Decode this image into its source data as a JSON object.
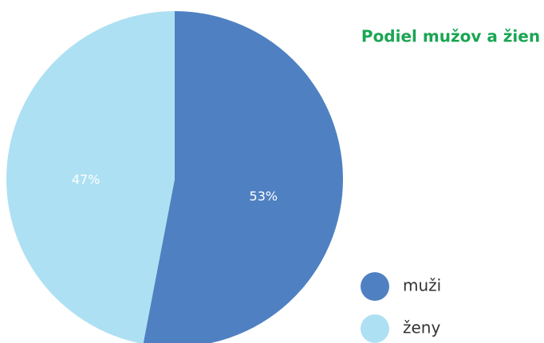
{
  "chart_data": {
    "type": "pie",
    "title": "Podiel mužov a žien",
    "categories": [
      "muži",
      "ženy"
    ],
    "values": [
      53,
      47
    ],
    "value_labels": [
      "53%",
      "47%"
    ],
    "colors": [
      "#4f81c2",
      "#aee0f3"
    ],
    "legend": "bottom-right"
  }
}
